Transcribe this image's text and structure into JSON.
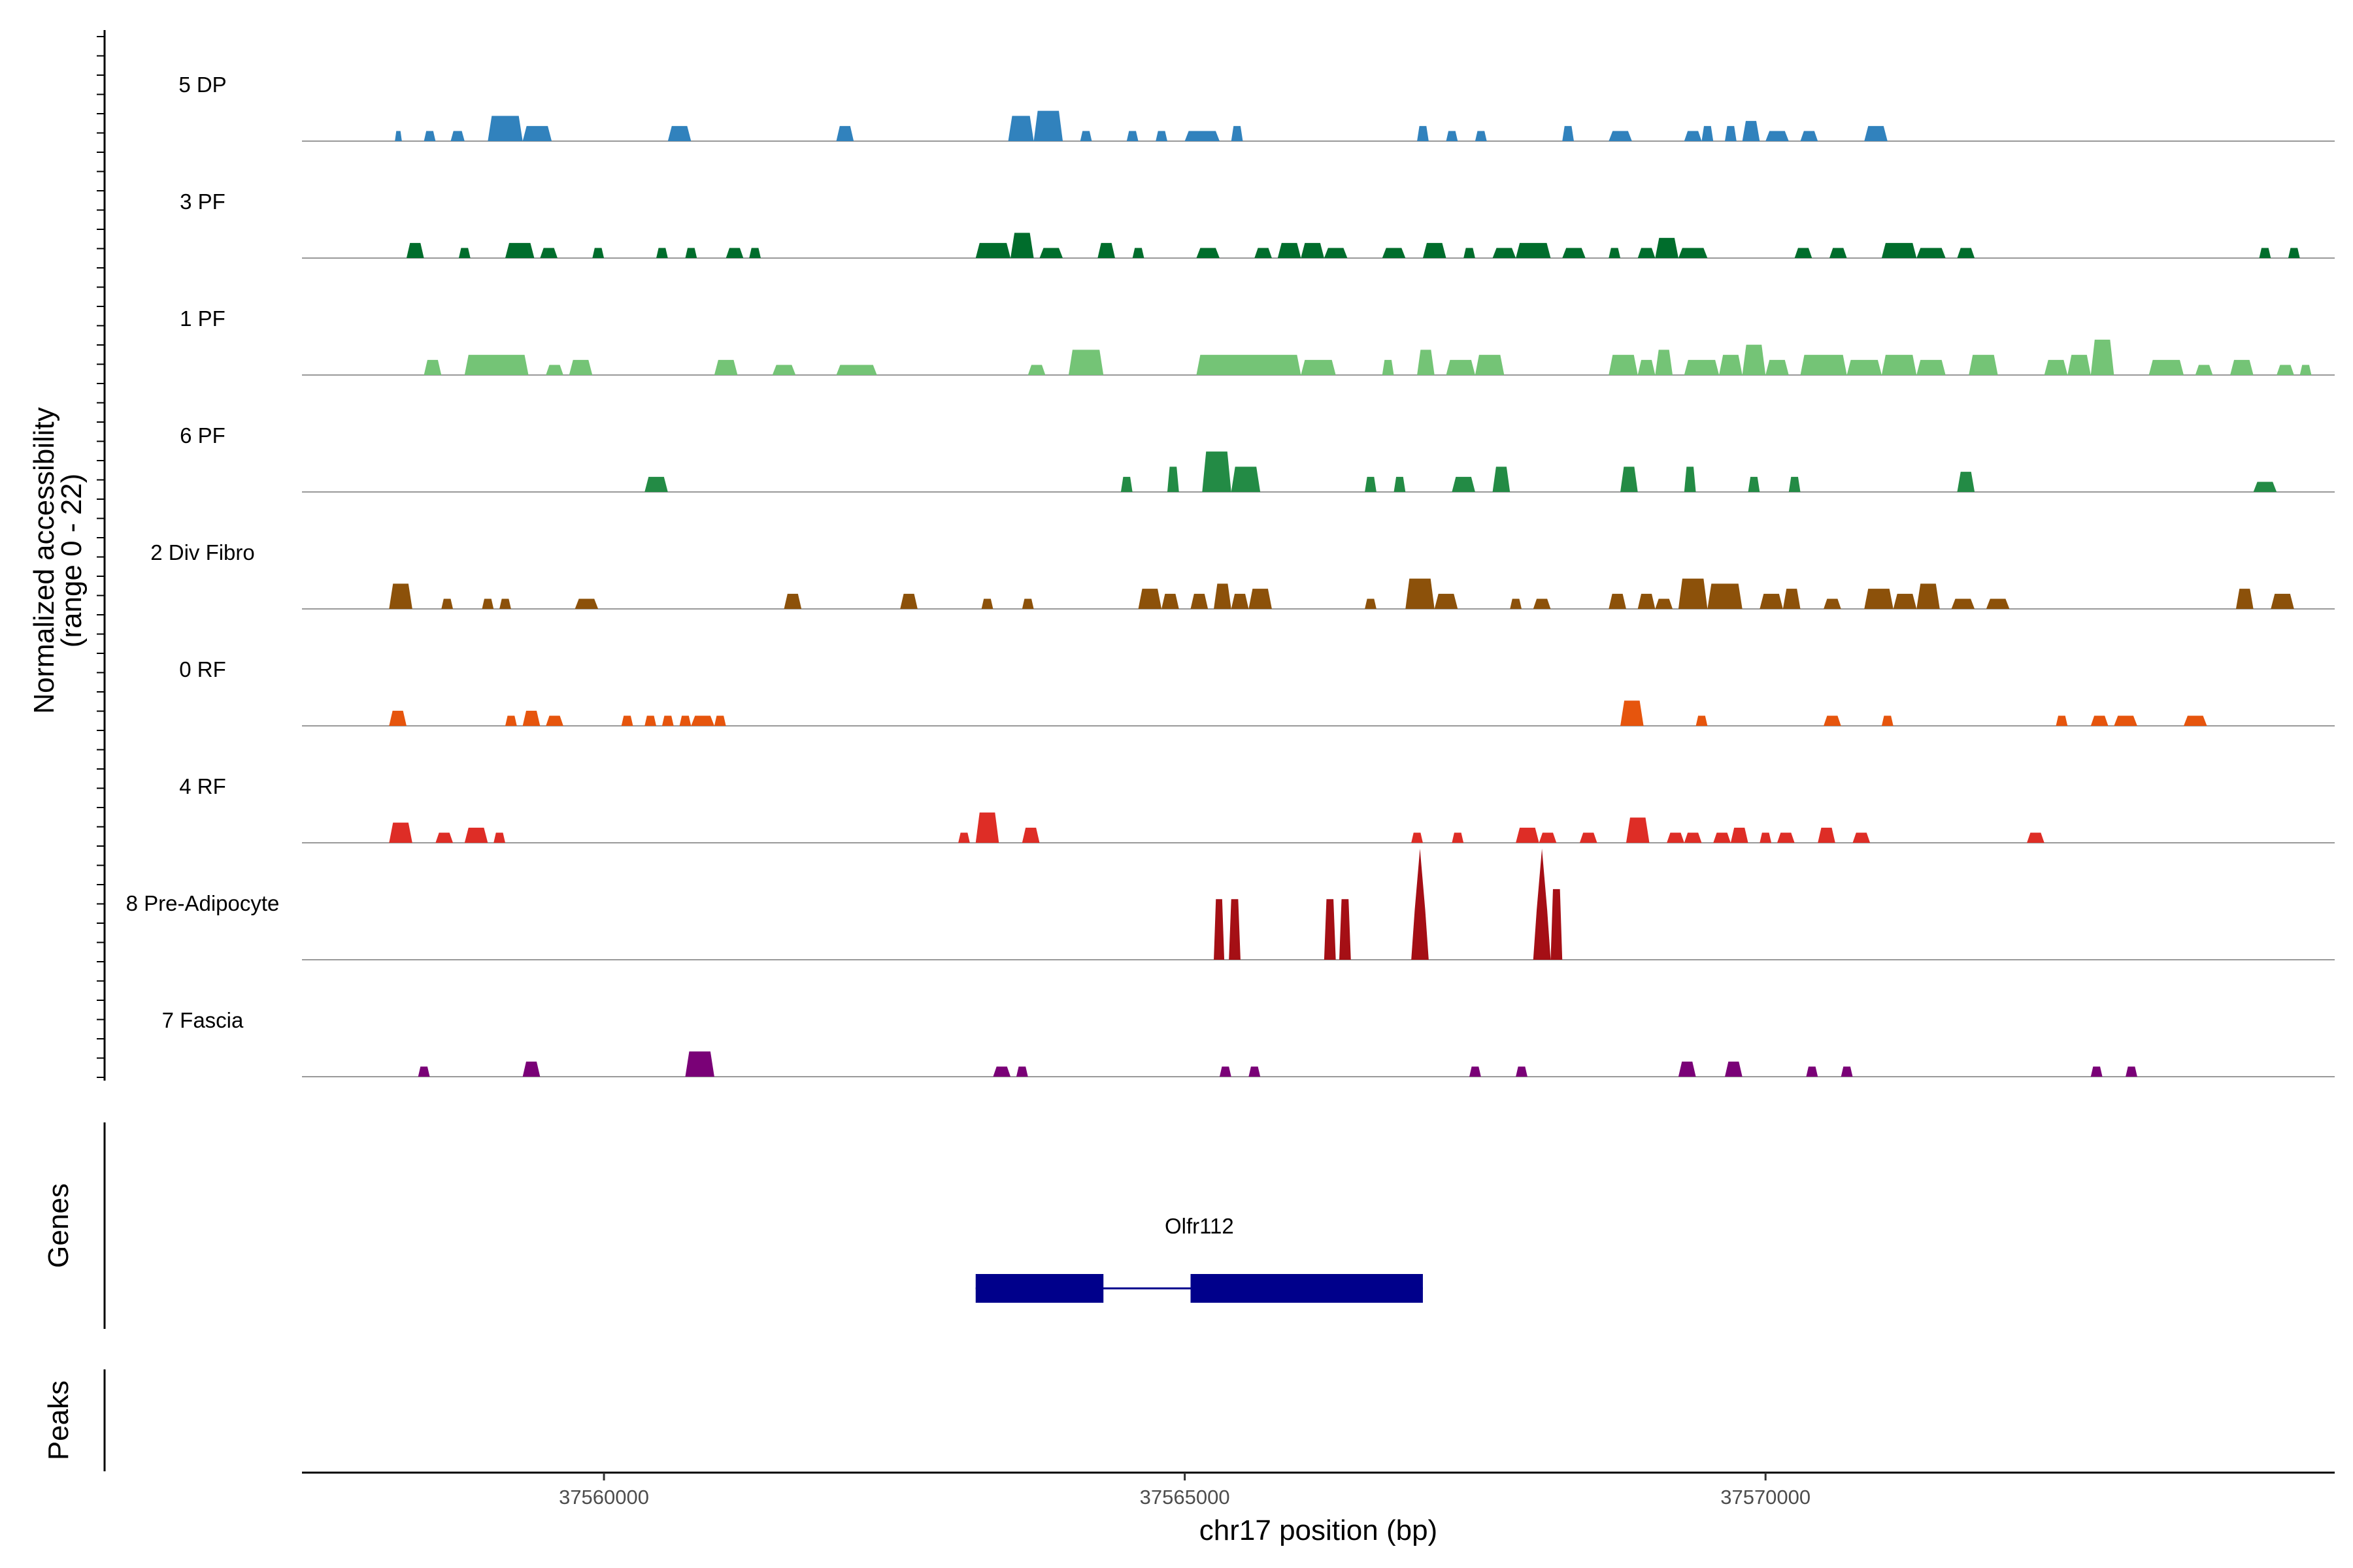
{
  "chart_data": {
    "type": "coverage",
    "chromosome": "chr17",
    "xlim": [
      37557400,
      37574900
    ],
    "ylim": [
      0,
      22
    ],
    "ylabel_line1": "Normalized accessibility",
    "ylabel_line2": "(range 0 - 22)",
    "xlabel": "chr17 position (bp)",
    "xticks": [
      37560000,
      37565000,
      37570000
    ],
    "xtick_labels": [
      "37560000",
      "37565000",
      "37570000"
    ],
    "panel_labels": {
      "genes": "Genes",
      "peaks": "Peaks"
    },
    "tracks": [
      {
        "name": "5 DP",
        "color": "#3182bd",
        "peaks": [
          [
            37558200,
            37558260,
            2
          ],
          [
            37558450,
            37558550,
            2
          ],
          [
            37558680,
            37558800,
            2
          ],
          [
            37559000,
            37559300,
            5
          ],
          [
            37559300,
            37559550,
            3
          ],
          [
            37560550,
            37560750,
            3
          ],
          [
            37562000,
            37562150,
            3
          ],
          [
            37563480,
            37563700,
            5
          ],
          [
            37563700,
            37563950,
            6
          ],
          [
            37564100,
            37564200,
            2
          ],
          [
            37564500,
            37564600,
            2
          ],
          [
            37564750,
            37564850,
            2
          ],
          [
            37565000,
            37565300,
            2
          ],
          [
            37565400,
            37565500,
            3
          ],
          [
            37567000,
            37567100,
            3
          ],
          [
            37567250,
            37567350,
            2
          ],
          [
            37567500,
            37567600,
            2
          ],
          [
            37568250,
            37568350,
            3
          ],
          [
            37568650,
            37568850,
            2
          ],
          [
            37569300,
            37569450,
            2
          ],
          [
            37569450,
            37569550,
            3
          ],
          [
            37569650,
            37569750,
            3
          ],
          [
            37569800,
            37569950,
            4
          ],
          [
            37570000,
            37570200,
            2
          ],
          [
            37570300,
            37570450,
            2
          ],
          [
            37570850,
            37571050,
            3
          ]
        ]
      },
      {
        "name": "3 PF",
        "color": "#006d2c",
        "peaks": [
          [
            37558300,
            37558450,
            3
          ],
          [
            37558750,
            37558850,
            2
          ],
          [
            37559150,
            37559400,
            3
          ],
          [
            37559450,
            37559600,
            2
          ],
          [
            37559900,
            37560000,
            2
          ],
          [
            37560450,
            37560550,
            2
          ],
          [
            37560700,
            37560800,
            2
          ],
          [
            37561050,
            37561200,
            2
          ],
          [
            37561250,
            37561350,
            2
          ],
          [
            37563200,
            37563500,
            3
          ],
          [
            37563500,
            37563700,
            5
          ],
          [
            37563750,
            37563950,
            2
          ],
          [
            37564250,
            37564400,
            3
          ],
          [
            37564550,
            37564650,
            2
          ],
          [
            37565100,
            37565300,
            2
          ],
          [
            37565600,
            37565750,
            2
          ],
          [
            37565800,
            37566000,
            3
          ],
          [
            37566000,
            37566200,
            3
          ],
          [
            37566200,
            37566400,
            2
          ],
          [
            37566700,
            37566900,
            2
          ],
          [
            37567050,
            37567250,
            3
          ],
          [
            37567400,
            37567500,
            2
          ],
          [
            37567650,
            37567850,
            2
          ],
          [
            37567850,
            37568150,
            3
          ],
          [
            37568250,
            37568450,
            2
          ],
          [
            37568650,
            37568750,
            2
          ],
          [
            37568900,
            37569050,
            2
          ],
          [
            37569050,
            37569250,
            4
          ],
          [
            37569250,
            37569500,
            2
          ],
          [
            37570250,
            37570400,
            2
          ],
          [
            37570550,
            37570700,
            2
          ],
          [
            37571000,
            37571300,
            3
          ],
          [
            37571300,
            37571550,
            2
          ],
          [
            37571650,
            37571800,
            2
          ],
          [
            37574250,
            37574350,
            2
          ],
          [
            37574500,
            37574600,
            2
          ]
        ]
      },
      {
        "name": "1 PF",
        "color": "#74c476",
        "peaks": [
          [
            37558450,
            37558600,
            3
          ],
          [
            37558800,
            37559350,
            4
          ],
          [
            37559500,
            37559650,
            2
          ],
          [
            37559700,
            37559900,
            3
          ],
          [
            37560950,
            37561150,
            3
          ],
          [
            37561450,
            37561650,
            2
          ],
          [
            37562000,
            37562350,
            2
          ],
          [
            37563650,
            37563800,
            2
          ],
          [
            37564000,
            37564300,
            5
          ],
          [
            37565100,
            37566000,
            4
          ],
          [
            37566000,
            37566300,
            3
          ],
          [
            37566700,
            37566800,
            3
          ],
          [
            37567000,
            37567150,
            5
          ],
          [
            37567250,
            37567500,
            3
          ],
          [
            37567500,
            37567750,
            4
          ],
          [
            37568650,
            37568900,
            4
          ],
          [
            37568900,
            37569050,
            3
          ],
          [
            37569050,
            37569200,
            5
          ],
          [
            37569300,
            37569600,
            3
          ],
          [
            37569600,
            37569800,
            4
          ],
          [
            37569800,
            37570000,
            6
          ],
          [
            37570000,
            37570200,
            3
          ],
          [
            37570300,
            37570700,
            4
          ],
          [
            37570700,
            37571000,
            3
          ],
          [
            37571000,
            37571300,
            4
          ],
          [
            37571300,
            37571550,
            3
          ],
          [
            37571750,
            37572000,
            4
          ],
          [
            37572400,
            37572600,
            3
          ],
          [
            37572600,
            37572800,
            4
          ],
          [
            37572800,
            37573000,
            7
          ],
          [
            37573300,
            37573600,
            3
          ],
          [
            37573700,
            37573850,
            2
          ],
          [
            37574000,
            37574200,
            3
          ],
          [
            37574400,
            37574550,
            2
          ],
          [
            37574600,
            37574700,
            2
          ]
        ]
      },
      {
        "name": "6 PF",
        "color": "#238b45",
        "peaks": [
          [
            37560350,
            37560550,
            3
          ],
          [
            37564450,
            37564550,
            3
          ],
          [
            37564850,
            37564950,
            5
          ],
          [
            37565150,
            37565400,
            8
          ],
          [
            37565400,
            37565650,
            5
          ],
          [
            37566550,
            37566650,
            3
          ],
          [
            37566800,
            37566900,
            3
          ],
          [
            37567300,
            37567500,
            3
          ],
          [
            37567650,
            37567800,
            5
          ],
          [
            37568750,
            37568900,
            5
          ],
          [
            37569300,
            37569400,
            5
          ],
          [
            37569850,
            37569950,
            3
          ],
          [
            37570200,
            37570300,
            3
          ],
          [
            37571650,
            37571800,
            4
          ],
          [
            37574200,
            37574400,
            2
          ]
        ]
      },
      {
        "name": "2 Div Fibro",
        "color": "#8c510a",
        "peaks": [
          [
            37558150,
            37558350,
            5
          ],
          [
            37558600,
            37558700,
            2
          ],
          [
            37558950,
            37559050,
            2
          ],
          [
            37559100,
            37559200,
            2
          ],
          [
            37559750,
            37559950,
            2
          ],
          [
            37561550,
            37561700,
            3
          ],
          [
            37562550,
            37562700,
            3
          ],
          [
            37563250,
            37563350,
            2
          ],
          [
            37563600,
            37563700,
            2
          ],
          [
            37564600,
            37564800,
            4
          ],
          [
            37564800,
            37564950,
            3
          ],
          [
            37565050,
            37565200,
            3
          ],
          [
            37565250,
            37565400,
            5
          ],
          [
            37565400,
            37565550,
            3
          ],
          [
            37565550,
            37565750,
            4
          ],
          [
            37566550,
            37566650,
            2
          ],
          [
            37566900,
            37567150,
            6
          ],
          [
            37567150,
            37567350,
            3
          ],
          [
            37567800,
            37567900,
            2
          ],
          [
            37568000,
            37568150,
            2
          ],
          [
            37568650,
            37568800,
            3
          ],
          [
            37568900,
            37569050,
            3
          ],
          [
            37569050,
            37569200,
            2
          ],
          [
            37569250,
            37569500,
            6
          ],
          [
            37569500,
            37569800,
            5
          ],
          [
            37569950,
            37570150,
            3
          ],
          [
            37570150,
            37570300,
            4
          ],
          [
            37570500,
            37570650,
            2
          ],
          [
            37570850,
            37571100,
            4
          ],
          [
            37571100,
            37571300,
            3
          ],
          [
            37571300,
            37571500,
            5
          ],
          [
            37571600,
            37571800,
            2
          ],
          [
            37571900,
            37572100,
            2
          ],
          [
            37574050,
            37574200,
            4
          ],
          [
            37574350,
            37574550,
            3
          ]
        ]
      },
      {
        "name": "0 RF",
        "color": "#e6550d",
        "peaks": [
          [
            37558150,
            37558300,
            3
          ],
          [
            37559150,
            37559250,
            2
          ],
          [
            37559300,
            37559450,
            3
          ],
          [
            37559500,
            37559650,
            2
          ],
          [
            37560150,
            37560250,
            2
          ],
          [
            37560350,
            37560450,
            2
          ],
          [
            37560500,
            37560600,
            2
          ],
          [
            37560650,
            37560750,
            2
          ],
          [
            37560750,
            37560950,
            2
          ],
          [
            37560950,
            37561050,
            2
          ],
          [
            37568750,
            37568950,
            5
          ],
          [
            37569400,
            37569500,
            2
          ],
          [
            37570500,
            37570650,
            2
          ],
          [
            37571000,
            37571100,
            2
          ],
          [
            37572500,
            37572600,
            2
          ],
          [
            37572800,
            37572950,
            2
          ],
          [
            37573000,
            37573200,
            2
          ],
          [
            37573600,
            37573800,
            2
          ]
        ]
      },
      {
        "name": "4 RF",
        "color": "#de2d26",
        "peaks": [
          [
            37558150,
            37558350,
            4
          ],
          [
            37558550,
            37558700,
            2
          ],
          [
            37558800,
            37559000,
            3
          ],
          [
            37559050,
            37559150,
            2
          ],
          [
            37563050,
            37563150,
            2
          ],
          [
            37563200,
            37563400,
            6
          ],
          [
            37563600,
            37563750,
            3
          ],
          [
            37566950,
            37567050,
            2
          ],
          [
            37567300,
            37567400,
            2
          ],
          [
            37567850,
            37568050,
            3
          ],
          [
            37568050,
            37568200,
            2
          ],
          [
            37568400,
            37568550,
            2
          ],
          [
            37568800,
            37569000,
            5
          ],
          [
            37569150,
            37569300,
            2
          ],
          [
            37569300,
            37569450,
            2
          ],
          [
            37569550,
            37569700,
            2
          ],
          [
            37569700,
            37569850,
            3
          ],
          [
            37569950,
            37570050,
            2
          ],
          [
            37570100,
            37570250,
            2
          ],
          [
            37570450,
            37570600,
            3
          ],
          [
            37570750,
            37570900,
            2
          ],
          [
            37572250,
            37572400,
            2
          ]
        ]
      },
      {
        "name": "8 Pre-Adipocyte",
        "color": "#a50f15",
        "peaks": [
          [
            37565250,
            37565340,
            12
          ],
          [
            37565380,
            37565480,
            12
          ],
          [
            37566200,
            37566300,
            12
          ],
          [
            37566330,
            37566430,
            12
          ],
          [
            37566950,
            37567100,
            22
          ],
          [
            37568000,
            37568150,
            22
          ],
          [
            37568150,
            37568250,
            14
          ]
        ]
      },
      {
        "name": "7 Fascia",
        "color": "#7a0177",
        "peaks": [
          [
            37558400,
            37558500,
            2
          ],
          [
            37559300,
            37559450,
            3
          ],
          [
            37560700,
            37560950,
            5
          ],
          [
            37563350,
            37563500,
            2
          ],
          [
            37563550,
            37563650,
            2
          ],
          [
            37565300,
            37565400,
            2
          ],
          [
            37565550,
            37565650,
            2
          ],
          [
            37567450,
            37567550,
            2
          ],
          [
            37567850,
            37567950,
            2
          ],
          [
            37569250,
            37569400,
            3
          ],
          [
            37569650,
            37569800,
            3
          ],
          [
            37570350,
            37570450,
            2
          ],
          [
            37570650,
            37570750,
            2
          ],
          [
            37572800,
            37572900,
            2
          ],
          [
            37573100,
            37573200,
            2
          ]
        ]
      }
    ],
    "gene": {
      "name": "Olfr112",
      "color": "#00008b",
      "start": 37563200,
      "end": 37567050,
      "exons": [
        [
          37563200,
          37564300
        ],
        [
          37565050,
          37567050
        ]
      ]
    },
    "peaks_track": []
  }
}
